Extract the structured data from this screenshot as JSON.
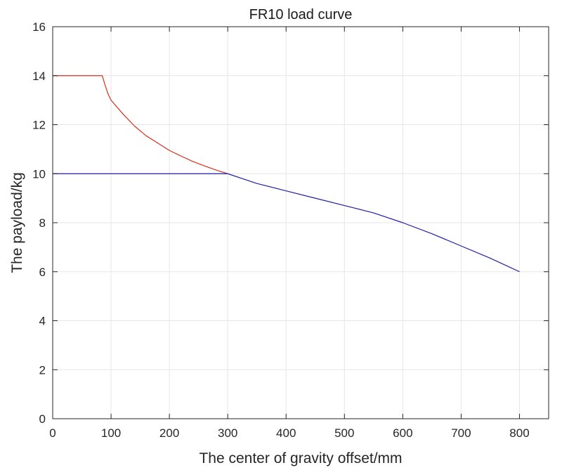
{
  "chart_data": {
    "type": "line",
    "title": "FR10 load curve",
    "xlabel": "The center of gravity offset/mm",
    "ylabel": "The payload/kg",
    "xlim": [
      0,
      850
    ],
    "ylim": [
      0,
      16
    ],
    "xticks": [
      0,
      100,
      200,
      300,
      400,
      500,
      600,
      700,
      800
    ],
    "yticks": [
      0,
      2,
      4,
      6,
      8,
      10,
      12,
      14,
      16
    ],
    "grid": true,
    "colors": {
      "red": "#d7301f",
      "blue": "#1f1fa8",
      "grid": "#e6e6e6",
      "axis": "#262626"
    },
    "series": [
      {
        "color": "red",
        "x": [
          0,
          85,
          90,
          95,
          100,
          120,
          140,
          160,
          180,
          200,
          220,
          240,
          260,
          280,
          300
        ],
        "y": [
          14,
          14,
          13.6,
          13.25,
          13.0,
          12.45,
          11.95,
          11.55,
          11.25,
          10.95,
          10.72,
          10.5,
          10.32,
          10.15,
          10.0
        ]
      },
      {
        "color": "blue",
        "x": [
          0,
          300,
          350,
          400,
          450,
          500,
          550,
          600,
          650,
          700,
          750,
          800
        ],
        "y": [
          10,
          10,
          9.6,
          9.3,
          9.0,
          8.7,
          8.4,
          8.0,
          7.55,
          7.05,
          6.55,
          6.0
        ]
      }
    ]
  }
}
